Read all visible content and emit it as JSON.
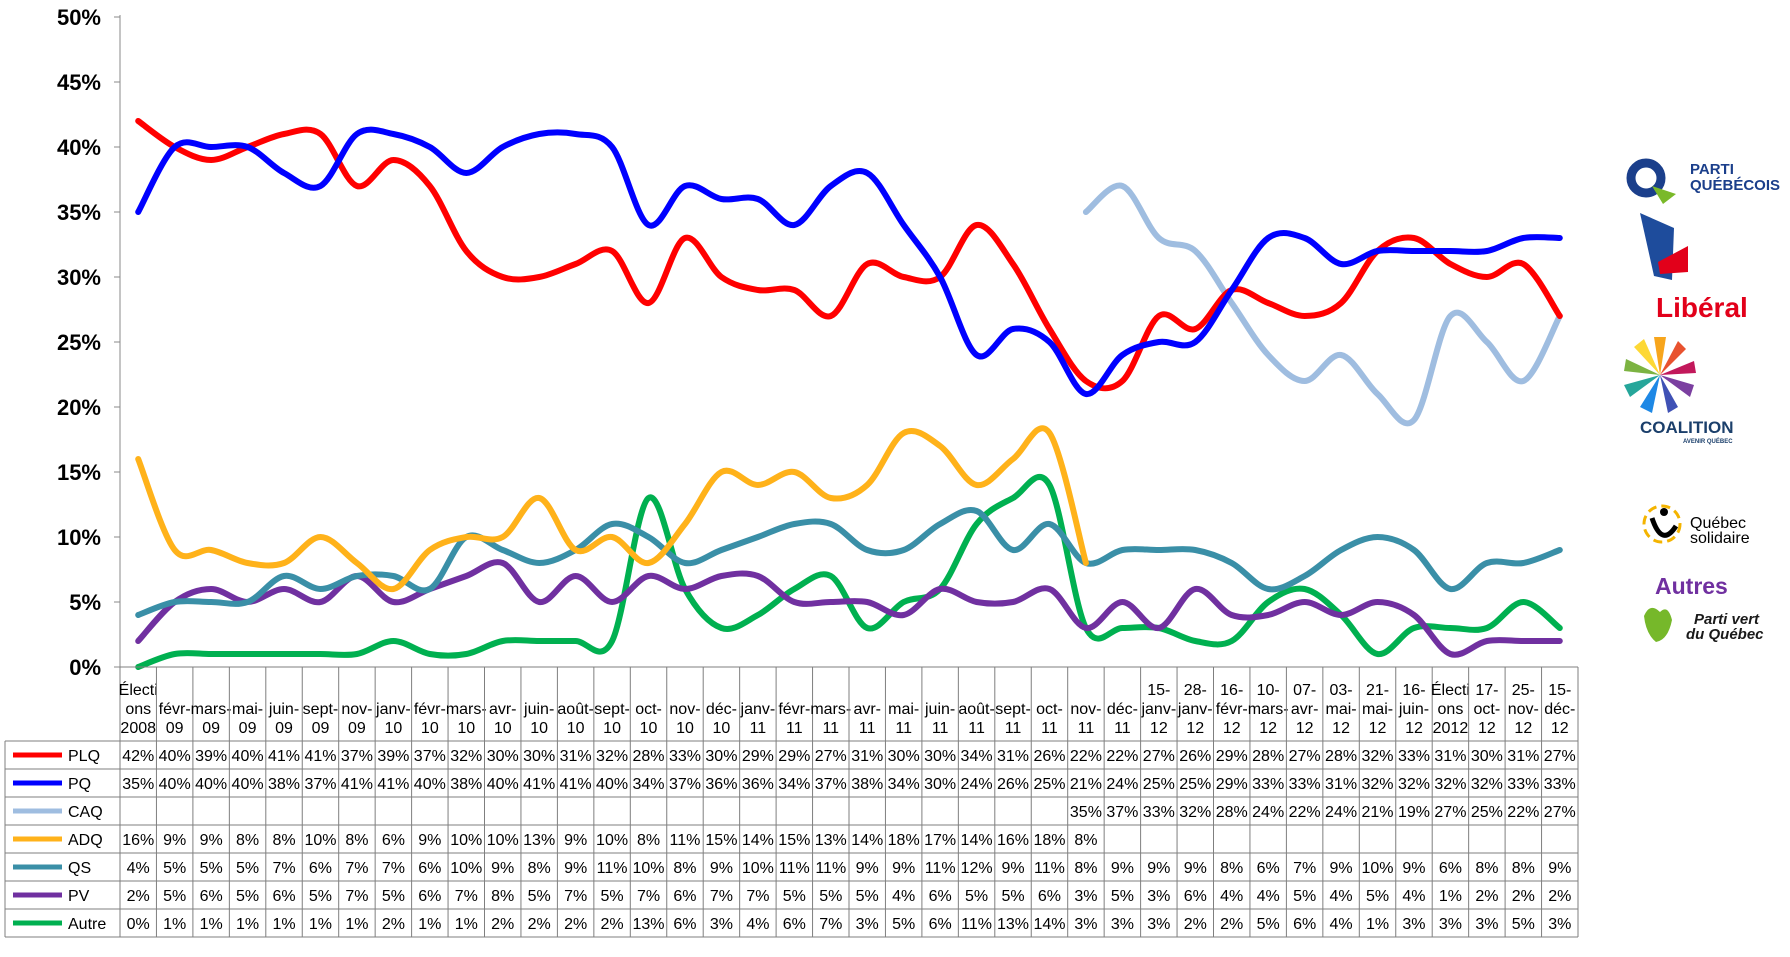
{
  "chart_data": {
    "type": "line",
    "title": "",
    "xlabel": "",
    "ylabel": "",
    "ylim": [
      0,
      50
    ],
    "yticks": [
      "0%",
      "5%",
      "10%",
      "15%",
      "20%",
      "25%",
      "30%",
      "35%",
      "40%",
      "45%",
      "50%"
    ],
    "grid": false,
    "legend": "data-table",
    "categories": [
      [
        "Électi",
        "ons",
        "2008"
      ],
      [
        "févr-",
        "09"
      ],
      [
        "mars-",
        "09"
      ],
      [
        "mai-",
        "09"
      ],
      [
        "juin-",
        "09"
      ],
      [
        "sept-",
        "09"
      ],
      [
        "nov-",
        "09"
      ],
      [
        "janv-",
        "10"
      ],
      [
        "févr-",
        "10"
      ],
      [
        "mars-",
        "10"
      ],
      [
        "avr-",
        "10"
      ],
      [
        "juin-",
        "10"
      ],
      [
        "août-",
        "10"
      ],
      [
        "sept-",
        "10"
      ],
      [
        "oct-",
        "10"
      ],
      [
        "nov-",
        "10"
      ],
      [
        "déc-",
        "10"
      ],
      [
        "janv-",
        "11"
      ],
      [
        "févr-",
        "11"
      ],
      [
        "mars-",
        "11"
      ],
      [
        "avr-",
        "11"
      ],
      [
        "mai-",
        "11"
      ],
      [
        "juin-",
        "11"
      ],
      [
        "août-",
        "11"
      ],
      [
        "sept-",
        "11"
      ],
      [
        "oct-",
        "11"
      ],
      [
        "nov-",
        "11"
      ],
      [
        "déc-",
        "11"
      ],
      [
        "15-",
        "janv-",
        "12"
      ],
      [
        "28-",
        "janv-",
        "12"
      ],
      [
        "16-",
        "févr-",
        "12"
      ],
      [
        "10-",
        "mars-",
        "12"
      ],
      [
        "07-",
        "avr-",
        "12"
      ],
      [
        "03-",
        "mai-",
        "12"
      ],
      [
        "21-",
        "mai-",
        "12"
      ],
      [
        "16-",
        "juin-",
        "12"
      ],
      [
        "Électi",
        "ons",
        "2012"
      ],
      [
        "17-",
        "oct-",
        "12"
      ],
      [
        "25-",
        "nov-",
        "12"
      ],
      [
        "15-",
        "déc-",
        "12"
      ]
    ],
    "series": [
      {
        "name": "PLQ",
        "color": "#ff0000",
        "values": [
          42,
          40,
          39,
          40,
          41,
          41,
          37,
          39,
          37,
          32,
          30,
          30,
          31,
          32,
          28,
          33,
          30,
          29,
          29,
          27,
          31,
          30,
          30,
          34,
          31,
          26,
          22,
          22,
          27,
          26,
          29,
          28,
          27,
          28,
          32,
          33,
          31,
          30,
          31,
          27
        ]
      },
      {
        "name": "PQ",
        "color": "#0000ff",
        "values": [
          35,
          40,
          40,
          40,
          38,
          37,
          41,
          41,
          40,
          38,
          40,
          41,
          41,
          40,
          34,
          37,
          36,
          36,
          34,
          37,
          38,
          34,
          30,
          24,
          26,
          25,
          21,
          24,
          25,
          25,
          29,
          33,
          33,
          31,
          32,
          32,
          32,
          32,
          33,
          33
        ]
      },
      {
        "name": "CAQ",
        "color": "#9fbde0",
        "values": [
          null,
          null,
          null,
          null,
          null,
          null,
          null,
          null,
          null,
          null,
          null,
          null,
          null,
          null,
          null,
          null,
          null,
          null,
          null,
          null,
          null,
          null,
          null,
          null,
          null,
          null,
          35,
          37,
          33,
          32,
          28,
          24,
          22,
          24,
          21,
          19,
          27,
          25,
          22,
          27
        ]
      },
      {
        "name": "ADQ",
        "color": "#ffb21a",
        "values": [
          16,
          9,
          9,
          8,
          8,
          10,
          8,
          6,
          9,
          10,
          10,
          13,
          9,
          10,
          8,
          11,
          15,
          14,
          15,
          13,
          14,
          18,
          17,
          14,
          16,
          18,
          8,
          null,
          null,
          null,
          null,
          null,
          null,
          null,
          null,
          null,
          null,
          null,
          null,
          null
        ]
      },
      {
        "name": "QS",
        "color": "#3a8fa7",
        "values": [
          4,
          5,
          5,
          5,
          7,
          6,
          7,
          7,
          6,
          10,
          9,
          8,
          9,
          11,
          10,
          8,
          9,
          10,
          11,
          11,
          9,
          9,
          11,
          12,
          9,
          11,
          8,
          9,
          9,
          9,
          8,
          6,
          7,
          9,
          10,
          9,
          6,
          8,
          8,
          9
        ]
      },
      {
        "name": "PV",
        "color": "#7030a0",
        "values": [
          2,
          5,
          6,
          5,
          6,
          5,
          7,
          5,
          6,
          7,
          8,
          5,
          7,
          5,
          7,
          6,
          7,
          7,
          5,
          5,
          5,
          4,
          6,
          5,
          5,
          6,
          3,
          5,
          3,
          6,
          4,
          4,
          5,
          4,
          5,
          4,
          1,
          2,
          2,
          2
        ]
      },
      {
        "name": "Autre",
        "color": "#00b050",
        "values": [
          0,
          1,
          1,
          1,
          1,
          1,
          1,
          2,
          1,
          1,
          2,
          2,
          2,
          2,
          13,
          6,
          3,
          4,
          6,
          7,
          3,
          5,
          6,
          11,
          13,
          14,
          3,
          3,
          3,
          2,
          2,
          5,
          6,
          4,
          1,
          3,
          3,
          3,
          5,
          3
        ]
      }
    ]
  },
  "logos": {
    "pq": {
      "line1": "PARTI",
      "line2": "QUÉBÉCOIS",
      "color": "#1b3f8b",
      "accent": "#7ab929"
    },
    "plq": {
      "text": "Libéral",
      "color": "#e2001a",
      "accent": "#1e4c9c"
    },
    "caq": {
      "text": "COALITION",
      "sub": "AVENIR QUÉBEC",
      "color": "#1b3f6b"
    },
    "qs": {
      "line1": "Québec",
      "line2": "solidaire",
      "color": "#000000"
    },
    "autres": {
      "text": "Autres",
      "color": "#7030a0"
    },
    "pv": {
      "line1": "Parti vert",
      "line2": "du Québec",
      "color": "#1a1a1a",
      "accent": "#76b82a"
    }
  }
}
